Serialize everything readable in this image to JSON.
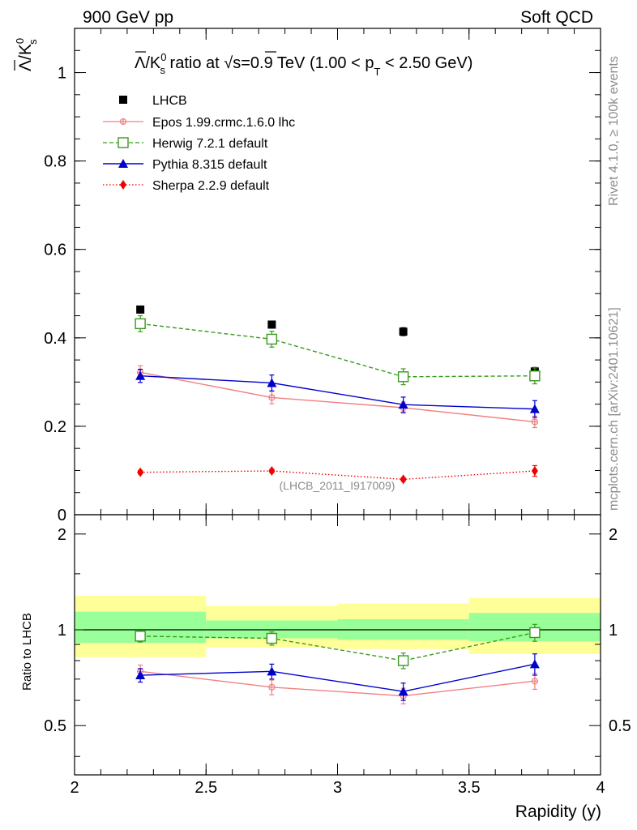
{
  "header": {
    "left": "900 GeV pp",
    "right": "Soft QCD"
  },
  "side": {
    "top": "Rivet 4.1.0, ≥ 100k events",
    "bottom": "mcplots.cern.ch [arXiv:2401.10621]"
  },
  "chart_data": [
    {
      "type": "line",
      "title_parts": {
        "main": "Λ/K",
        "sup": "0",
        "sub": "s",
        "ratio_at": " ratio at ",
        "sqrt": "√s",
        "energy": "=0.9 TeV (1.00 < p",
        "pt_sub": "T",
        "range_end": " < 2.50 GeV)"
      },
      "ylabel_parts": {
        "main": "Λ/K",
        "sup": "0",
        "sub": "s"
      },
      "xlim": [
        2,
        4
      ],
      "ylim": [
        0,
        1.1
      ],
      "yticks": [
        0,
        0.2,
        0.4,
        0.6,
        0.8,
        1
      ],
      "ytick_labels": [
        "0",
        "0.2",
        "0.4",
        "0.6",
        "0.8",
        "1"
      ],
      "x": [
        2.25,
        2.75,
        3.25,
        3.75
      ],
      "series": [
        {
          "name": "LHCB",
          "color": "#000000",
          "marker": "filled-square",
          "line": "none",
          "values": [
            0.464,
            0.43,
            0.414,
            0.324
          ],
          "errors": [
            0.008,
            0.008,
            0.009,
            0.009
          ]
        },
        {
          "name": "Epos 1.99.crmc.1.6.0 lhc",
          "color": "#f08080",
          "marker": "open-cross",
          "line": "solid",
          "values": [
            0.322,
            0.265,
            0.242,
            0.21
          ],
          "errors": [
            0.015,
            0.014,
            0.013,
            0.013
          ]
        },
        {
          "name": "Herwig 7.2.1 default",
          "color": "#3a9a1e",
          "marker": "open-square",
          "line": "dashed",
          "values": [
            0.432,
            0.397,
            0.312,
            0.314
          ],
          "errors": [
            0.018,
            0.018,
            0.018,
            0.018
          ]
        },
        {
          "name": "Pythia 8.315 default",
          "color": "#0000cc",
          "marker": "filled-triangle",
          "line": "solid",
          "values": [
            0.314,
            0.298,
            0.249,
            0.239
          ],
          "errors": [
            0.015,
            0.018,
            0.017,
            0.019
          ]
        },
        {
          "name": "Sherpa 2.2.9 default",
          "color": "#ee0000",
          "marker": "filled-diamond",
          "line": "dotted",
          "values": [
            0.096,
            0.099,
            0.08,
            0.099
          ],
          "errors": [
            0.004,
            0.004,
            0.004,
            0.012
          ]
        }
      ],
      "annotation": "(LHCB_2011_I917009)"
    },
    {
      "type": "line",
      "ylabel": "Ratio to LHCB",
      "xlabel": "Rapidity (y)",
      "xlim": [
        2,
        4
      ],
      "ylim": [
        0.35,
        2.3
      ],
      "xticks": [
        2,
        2.5,
        3,
        3.5,
        4
      ],
      "xtick_labels": [
        "2",
        "2.5",
        "3",
        "3.5",
        "4"
      ],
      "yticks": [
        0.5,
        1,
        2
      ],
      "ytick_labels": [
        "0.5",
        "1",
        "2"
      ],
      "bands": [
        {
          "x_range": [
            2.0,
            2.5
          ],
          "yellow": [
            0.82,
            1.28
          ],
          "green": [
            0.91,
            1.14
          ]
        },
        {
          "x_range": [
            2.5,
            3.0
          ],
          "yellow": [
            0.88,
            1.19
          ],
          "green": [
            0.94,
            1.07
          ]
        },
        {
          "x_range": [
            3.0,
            3.5
          ],
          "yellow": [
            0.87,
            1.21
          ],
          "green": [
            0.93,
            1.08
          ]
        },
        {
          "x_range": [
            3.5,
            4.0
          ],
          "yellow": [
            0.84,
            1.26
          ],
          "green": [
            0.92,
            1.13
          ]
        }
      ],
      "x": [
        2.25,
        2.75,
        3.25,
        3.75
      ],
      "series": [
        {
          "name": "Epos 1.99.crmc.1.6.0 lhc",
          "color": "#f08080",
          "marker": "open-cross",
          "line": "solid",
          "values": [
            0.74,
            0.66,
            0.62,
            0.69
          ],
          "errors": [
            0.035,
            0.035,
            0.035,
            0.04
          ]
        },
        {
          "name": "Herwig 7.2.1 default",
          "color": "#3a9a1e",
          "marker": "open-square",
          "line": "dashed",
          "values": [
            0.955,
            0.94,
            0.8,
            0.98
          ],
          "errors": [
            0.04,
            0.045,
            0.045,
            0.06
          ]
        },
        {
          "name": "Pythia 8.315 default",
          "color": "#0000cc",
          "marker": "filled-triangle",
          "line": "solid",
          "values": [
            0.72,
            0.74,
            0.64,
            0.78
          ],
          "errors": [
            0.035,
            0.04,
            0.04,
            0.06
          ]
        }
      ]
    }
  ]
}
